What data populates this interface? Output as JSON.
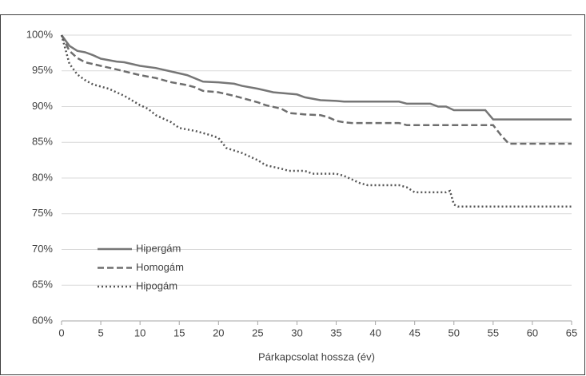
{
  "chart_data": {
    "type": "line",
    "x_label": "Párkapcsolat hossza (év)",
    "xlim": [
      0,
      65
    ],
    "xticks": [
      0,
      5,
      10,
      15,
      20,
      25,
      30,
      35,
      40,
      45,
      50,
      55,
      60,
      65
    ],
    "ylim": [
      60,
      100
    ],
    "yticks": [
      {
        "value": 60,
        "label": "60%"
      },
      {
        "value": 65,
        "label": "65%"
      },
      {
        "value": 70,
        "label": "70%"
      },
      {
        "value": 75,
        "label": "75%"
      },
      {
        "value": 80,
        "label": "80%"
      },
      {
        "value": 85,
        "label": "85%"
      },
      {
        "value": 90,
        "label": "90%"
      },
      {
        "value": 95,
        "label": "95%"
      },
      {
        "value": 100,
        "label": "100%"
      }
    ],
    "grid": true,
    "legend": "lower left",
    "series": [
      {
        "name": "Hipergám",
        "color": "#767676",
        "style": "solid",
        "x": [
          0,
          1,
          2,
          3,
          4,
          5,
          7,
          8,
          10,
          12,
          14,
          16,
          18,
          20,
          22,
          23,
          25,
          27,
          30,
          31,
          33,
          35,
          36,
          43,
          44,
          47,
          48,
          49,
          50,
          54,
          55,
          56,
          65
        ],
        "values": [
          100,
          98.5,
          97.8,
          97.6,
          97.2,
          96.7,
          96.3,
          96.2,
          95.7,
          95.4,
          94.9,
          94.4,
          93.5,
          93.4,
          93.2,
          92.9,
          92.5,
          92.0,
          91.7,
          91.3,
          90.9,
          90.8,
          90.7,
          90.7,
          90.4,
          90.4,
          90.0,
          90.0,
          89.5,
          89.5,
          88.2,
          88.2,
          88.2
        ]
      },
      {
        "name": "Homogám",
        "color": "#6e6e6e",
        "style": "dashed",
        "x": [
          0,
          1,
          2,
          3,
          5,
          7,
          10,
          12,
          14,
          16,
          17,
          18,
          20,
          22,
          23,
          25,
          26,
          28,
          29,
          31,
          33,
          34,
          35,
          36,
          37,
          43,
          44,
          55,
          56,
          57,
          65
        ],
        "values": [
          100,
          97.8,
          96.8,
          96.2,
          95.7,
          95.2,
          94.4,
          94.0,
          93.4,
          93.0,
          92.7,
          92.2,
          92.0,
          91.5,
          91.2,
          90.6,
          90.2,
          89.7,
          89.1,
          88.9,
          88.8,
          88.5,
          88.0,
          87.8,
          87.7,
          87.7,
          87.4,
          87.4,
          86.0,
          84.8,
          84.8
        ]
      },
      {
        "name": "Hipogám",
        "color": "#555555",
        "style": "dotted",
        "x": [
          0,
          1,
          2,
          3,
          4,
          6,
          8,
          10,
          11,
          12,
          14,
          15,
          17,
          19,
          20,
          21,
          23,
          25,
          26,
          28,
          29,
          31,
          32,
          35,
          36,
          37,
          38,
          39,
          43,
          44,
          45,
          49,
          49.5,
          50,
          50.5,
          65
        ],
        "values": [
          100,
          96.0,
          94.5,
          93.7,
          93.1,
          92.5,
          91.5,
          90.2,
          89.7,
          88.8,
          87.8,
          87.0,
          86.6,
          86.0,
          85.6,
          84.2,
          83.5,
          82.5,
          81.8,
          81.3,
          81.0,
          81.0,
          80.6,
          80.6,
          80.3,
          79.8,
          79.3,
          79.0,
          79.0,
          78.7,
          78.0,
          78.0,
          78.2,
          76.3,
          76.0,
          76.0
        ]
      }
    ]
  }
}
